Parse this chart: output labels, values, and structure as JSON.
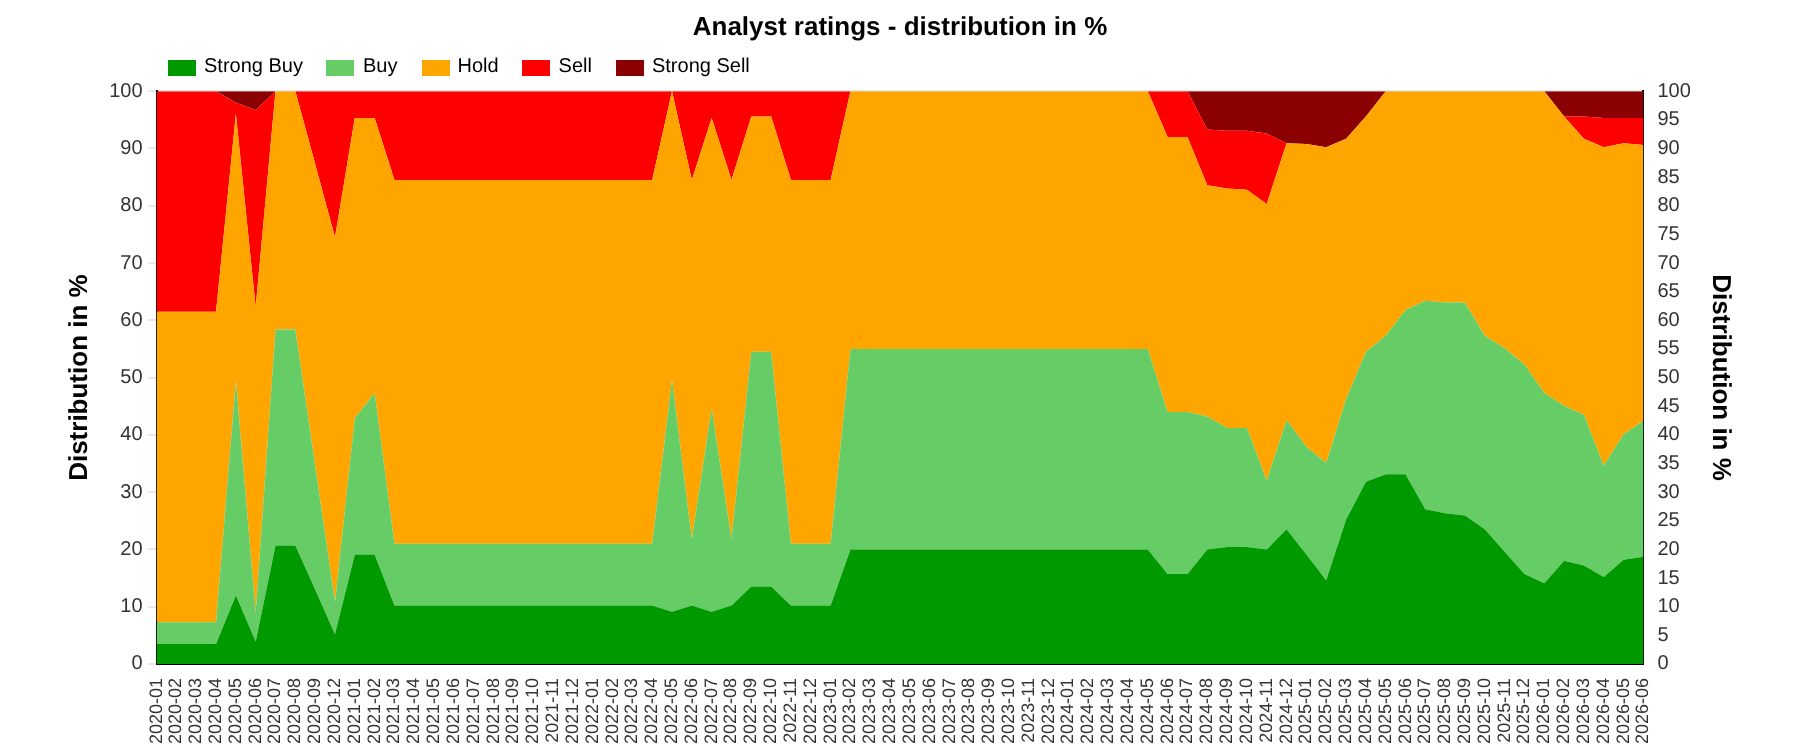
{
  "chart_data": {
    "type": "area",
    "title": "Analyst ratings - distribution in %",
    "ylabel": "Distribution in %",
    "y2label": "Distribution in %",
    "stacked": true,
    "grid": "y",
    "legend": "top left",
    "categories": [
      "2020-01",
      "2020-02",
      "2020-03",
      "2020-04",
      "2020-05",
      "2020-06",
      "2020-07",
      "2020-08",
      "2020-09",
      "2020-12",
      "2021-01",
      "2021-02",
      "2021-03",
      "2021-04",
      "2021-05",
      "2021-06",
      "2021-07",
      "2021-08",
      "2021-09",
      "2021-10",
      "2021-11",
      "2021-12",
      "2022-01",
      "2022-02",
      "2022-03",
      "2022-04",
      "2022-05",
      "2022-06",
      "2022-07",
      "2022-08",
      "2022-09",
      "2022-10",
      "2022-11",
      "2022-12",
      "2023-01",
      "2023-02",
      "2023-03",
      "2023-04",
      "2023-05",
      "2023-06",
      "2023-07",
      "2023-08",
      "2023-09",
      "2023-10",
      "2023-11",
      "2023-12",
      "2024-01",
      "2024-02",
      "2024-03",
      "2024-04",
      "2024-05",
      "2024-06",
      "2024-07",
      "2024-08",
      "2024-09",
      "2024-10",
      "2024-11",
      "2024-12",
      "2025-01",
      "2025-02",
      "2025-03",
      "2025-04",
      "2025-05",
      "2025-06",
      "2025-07",
      "2025-08",
      "2025-09",
      "2025-10",
      "2025-11",
      "2025-12",
      "2026-01",
      "2026-02",
      "2026-03",
      "2026-04",
      "2026-05",
      "2026-06"
    ],
    "series": [
      {
        "name": "Strong Buy",
        "color": "#009900",
        "values": [
          3.5,
          3.5,
          3.5,
          3.5,
          12,
          3.9,
          20.7,
          20.7,
          13,
          5.2,
          19.1,
          19.1,
          10.2,
          10.2,
          10.2,
          10.2,
          10.2,
          10.2,
          10.2,
          10.2,
          10.2,
          10.2,
          10.2,
          10.2,
          10.2,
          10.2,
          9.1,
          10.2,
          9.1,
          10.2,
          13.5,
          13.5,
          10.2,
          10.2,
          10.2,
          20,
          20,
          20,
          20,
          20,
          20,
          20,
          20,
          20,
          20,
          20,
          20,
          20,
          20,
          20,
          20,
          15.7,
          15.7,
          20,
          20.4,
          20.4,
          20,
          23.5,
          19.1,
          14.6,
          25.2,
          31.8,
          33.1,
          33.1,
          27,
          26.3,
          25.9,
          23.5,
          19.6,
          15.7,
          14.1,
          18,
          17.2,
          15.2,
          18.2,
          18.7
        ]
      },
      {
        "name": "Buy",
        "color": "#66cc66",
        "values": [
          3.8,
          3.8,
          3.8,
          3.8,
          37.5,
          5.1,
          37.7,
          37.7,
          21.6,
          5.6,
          23.8,
          28.2,
          10.8,
          10.8,
          10.8,
          10.8,
          10.8,
          10.8,
          10.8,
          10.8,
          10.8,
          10.8,
          10.8,
          10.8,
          10.8,
          10.8,
          40.5,
          11.6,
          35.5,
          11.6,
          41,
          41,
          10.8,
          10.8,
          10.8,
          35,
          35,
          35,
          35,
          35,
          35,
          35,
          35,
          35,
          35,
          35,
          35,
          35,
          35,
          35,
          35,
          28.3,
          28.3,
          23.2,
          20.8,
          20.8,
          12,
          19.1,
          18.8,
          20.5,
          21,
          22.7,
          24.2,
          28.7,
          36.4,
          36.8,
          37.2,
          33.8,
          35.5,
          36.6,
          33.2,
          27.1,
          26.3,
          19.4,
          21.9,
          23.7
        ]
      },
      {
        "name": "Hold",
        "color": "#ffa500",
        "values": [
          54.2,
          54.2,
          54.2,
          54.2,
          46.5,
          53.3,
          41.6,
          41.6,
          52.7,
          63.7,
          52.4,
          48,
          63.5,
          63.5,
          63.5,
          63.5,
          63.5,
          63.5,
          63.5,
          63.5,
          63.5,
          63.5,
          63.5,
          63.5,
          63.5,
          63.5,
          50.4,
          62.7,
          50.7,
          62.7,
          41.1,
          41.1,
          63.5,
          63.5,
          63.5,
          45,
          45,
          45,
          45,
          45,
          45,
          45,
          45,
          45,
          45,
          45,
          45,
          45,
          45,
          45,
          45,
          48,
          48,
          40.4,
          41.8,
          41.6,
          48.3,
          48.3,
          52.9,
          55.1,
          45.5,
          41.1,
          42.7,
          38.2,
          36.6,
          36.9,
          36.9,
          42.7,
          44.9,
          47.7,
          52.7,
          50.5,
          48.2,
          55.6,
          50.8,
          48.2
        ]
      },
      {
        "name": "Sell",
        "color": "#ff0000",
        "values": [
          38.5,
          38.5,
          38.5,
          38.5,
          2,
          34.4,
          0,
          0,
          12.7,
          25.5,
          4.7,
          4.7,
          15.5,
          15.5,
          15.5,
          15.5,
          15.5,
          15.5,
          15.5,
          15.5,
          15.5,
          15.5,
          15.5,
          15.5,
          15.5,
          15.5,
          0,
          15.5,
          4.7,
          15.5,
          4.4,
          4.4,
          15.5,
          15.5,
          15.5,
          0,
          0,
          0,
          0,
          0,
          0,
          0,
          0,
          0,
          0,
          0,
          0,
          0,
          0,
          0,
          0,
          8,
          8,
          9.7,
          10.1,
          10.3,
          12.3,
          0,
          0,
          0,
          0,
          0,
          0,
          0,
          0,
          0,
          0,
          0,
          0,
          0,
          0,
          0,
          3.9,
          5.1,
          4.4,
          4.7
        ]
      },
      {
        "name": "Strong Sell",
        "color": "#8b0000",
        "values": [
          0,
          0,
          0,
          0,
          2,
          3.3,
          0,
          0,
          0,
          0,
          0,
          0,
          0,
          0,
          0,
          0,
          0,
          0,
          0,
          0,
          0,
          0,
          0,
          0,
          0,
          0,
          0,
          0,
          0,
          0,
          0,
          0,
          0,
          0,
          0,
          0,
          0,
          0,
          0,
          0,
          0,
          0,
          0,
          0,
          0,
          0,
          0,
          0,
          0,
          0,
          0,
          0,
          0,
          6.7,
          6.9,
          6.9,
          7.4,
          9.1,
          9.2,
          9.8,
          8.3,
          4.4,
          0,
          0,
          0,
          0,
          0,
          0,
          0,
          0,
          0,
          4.4,
          4.4,
          4.7,
          4.7,
          4.7
        ]
      }
    ],
    "ylim": [
      0,
      100
    ],
    "yticks": [
      0,
      10,
      20,
      30,
      40,
      50,
      60,
      70,
      80,
      90,
      100
    ],
    "y2lim": [
      0,
      100
    ],
    "y2ticks": [
      0,
      5,
      10,
      15,
      20,
      25,
      30,
      35,
      40,
      45,
      50,
      55,
      60,
      65,
      70,
      75,
      80,
      85,
      90,
      95,
      100
    ]
  }
}
